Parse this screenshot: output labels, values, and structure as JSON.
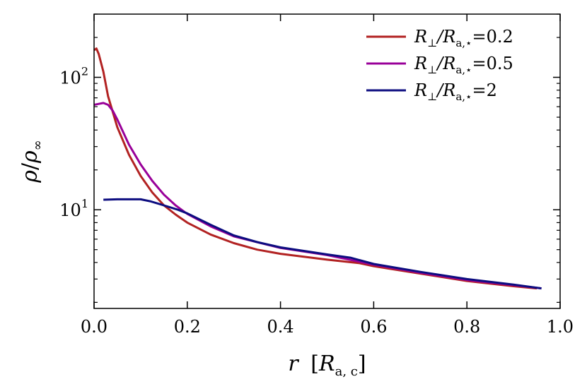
{
  "chart_data": {
    "type": "line",
    "title": "",
    "xlabel": "r [R_a,c]",
    "ylabel": "ρ/ρ∞",
    "xlim": [
      0.0,
      1.0
    ],
    "ylim": [
      1.8,
      300
    ],
    "yscale": "log",
    "grid": false,
    "legend_position": "top-right",
    "x_ticks": [
      "0.0",
      "0.2",
      "0.4",
      "0.6",
      "0.8",
      "1.0"
    ],
    "y_ticks": [
      {
        "value": 10,
        "base": "10",
        "exp": "1"
      },
      {
        "value": 100,
        "base": "10",
        "exp": "2"
      }
    ],
    "series": [
      {
        "name": "R⊥/Ra,⋆ = 0.2",
        "color": "#b22222",
        "points": [
          [
            0.0,
            160
          ],
          [
            0.005,
            165
          ],
          [
            0.01,
            150
          ],
          [
            0.02,
            110
          ],
          [
            0.03,
            72
          ],
          [
            0.05,
            42
          ],
          [
            0.075,
            26
          ],
          [
            0.1,
            18
          ],
          [
            0.125,
            13.5
          ],
          [
            0.15,
            10.8
          ],
          [
            0.175,
            9.2
          ],
          [
            0.2,
            8.0
          ],
          [
            0.25,
            6.5
          ],
          [
            0.3,
            5.6
          ],
          [
            0.35,
            5.0
          ],
          [
            0.4,
            4.65
          ],
          [
            0.5,
            4.2
          ],
          [
            0.57,
            3.95
          ],
          [
            0.6,
            3.75
          ],
          [
            0.7,
            3.3
          ],
          [
            0.8,
            2.9
          ],
          [
            0.9,
            2.65
          ],
          [
            0.95,
            2.55
          ]
        ]
      },
      {
        "name": "R⊥/Ra,⋆ = 0.5",
        "color": "#990099",
        "points": [
          [
            0.0,
            62
          ],
          [
            0.01,
            63
          ],
          [
            0.02,
            64
          ],
          [
            0.03,
            62
          ],
          [
            0.04,
            56
          ],
          [
            0.05,
            48
          ],
          [
            0.075,
            31
          ],
          [
            0.1,
            22
          ],
          [
            0.125,
            16.5
          ],
          [
            0.15,
            13
          ],
          [
            0.175,
            10.8
          ],
          [
            0.2,
            9.3
          ],
          [
            0.25,
            7.5
          ],
          [
            0.3,
            6.3
          ],
          [
            0.4,
            5.15
          ],
          [
            0.5,
            4.55
          ],
          [
            0.6,
            3.85
          ],
          [
            0.7,
            3.35
          ],
          [
            0.8,
            2.95
          ],
          [
            0.9,
            2.7
          ],
          [
            0.96,
            2.55
          ]
        ]
      },
      {
        "name": "R⊥/Ra,⋆ = 2",
        "color": "#0d0d80",
        "points": [
          [
            0.02,
            11.9
          ],
          [
            0.05,
            12.0
          ],
          [
            0.08,
            12.0
          ],
          [
            0.1,
            12.0
          ],
          [
            0.12,
            11.6
          ],
          [
            0.15,
            10.8
          ],
          [
            0.18,
            10.0
          ],
          [
            0.2,
            9.4
          ],
          [
            0.25,
            7.7
          ],
          [
            0.3,
            6.4
          ],
          [
            0.35,
            5.7
          ],
          [
            0.4,
            5.2
          ],
          [
            0.5,
            4.6
          ],
          [
            0.55,
            4.35
          ],
          [
            0.6,
            3.9
          ],
          [
            0.7,
            3.4
          ],
          [
            0.8,
            3.0
          ],
          [
            0.9,
            2.72
          ],
          [
            0.96,
            2.55
          ]
        ]
      }
    ],
    "legend": [
      {
        "main": "R",
        "sub1": "⊥",
        "mid": "/R",
        "sub2": "a,⋆",
        "value": "=0.2"
      },
      {
        "main": "R",
        "sub1": "⊥",
        "mid": "/R",
        "sub2": "a,⋆",
        "value": "=0.5"
      },
      {
        "main": "R",
        "sub1": "⊥",
        "mid": "/R",
        "sub2": "a,⋆",
        "value": "=2"
      }
    ],
    "xlabel_parts": {
      "var": "r",
      "open": "[",
      "unit": "R",
      "sub": "a, c",
      "close": "]"
    },
    "ylabel_parts": {
      "num": "ρ",
      "slash": "/",
      "den": "ρ",
      "sub": "∞"
    }
  }
}
